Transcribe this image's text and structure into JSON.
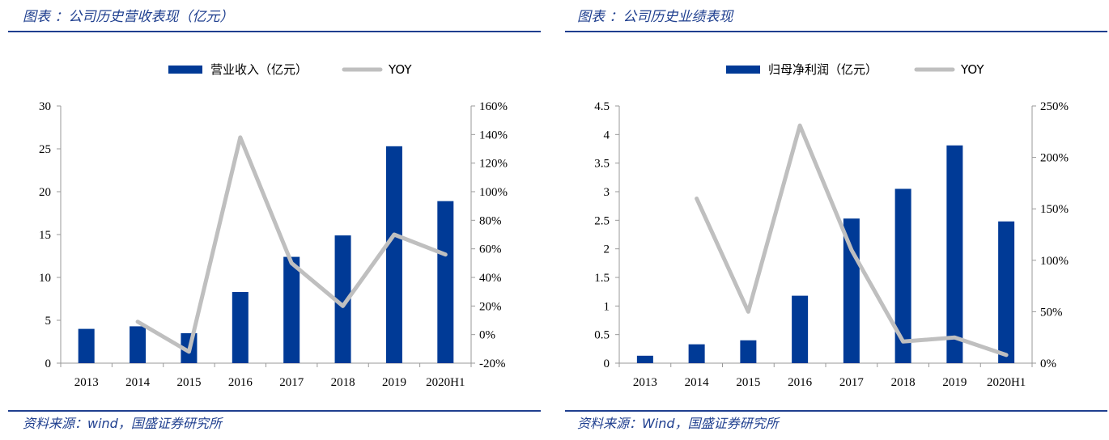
{
  "colors": {
    "bar": "#003a96",
    "line": "#bfbfbf",
    "axis": "#999999",
    "header_rule": "#1f3f8f"
  },
  "panels": [
    {
      "title": "图表 ：公司历史营收表现（亿元）",
      "source": "资料来源：wind，国盛证券研究所"
    },
    {
      "title": "图表 ：公司历史业绩表现",
      "source": "资料来源：Wind，国盛证券研究所"
    }
  ],
  "chart_data": [
    {
      "type": "bar",
      "categories": [
        "2013",
        "2014",
        "2015",
        "2016",
        "2017",
        "2018",
        "2019",
        "2020H1"
      ],
      "series": [
        {
          "name": "营业收入（亿元）",
          "type": "bar",
          "axis": "left",
          "values": [
            4.0,
            4.3,
            3.5,
            8.3,
            12.4,
            14.9,
            25.3,
            18.9
          ]
        },
        {
          "name": "YOY",
          "type": "line",
          "axis": "right",
          "values": [
            null,
            9,
            -12,
            138,
            50,
            20,
            70,
            56
          ]
        }
      ],
      "y_left": {
        "min": 0,
        "max": 30,
        "ticks": [
          0,
          5,
          10,
          15,
          20,
          25,
          30
        ],
        "tick_labels": [
          "0",
          "5",
          "10",
          "15",
          "20",
          "25",
          "30"
        ]
      },
      "y_right": {
        "min": -20,
        "max": 160,
        "ticks": [
          -20,
          0,
          20,
          40,
          60,
          80,
          100,
          120,
          140,
          160
        ],
        "tick_labels": [
          "-20%",
          "0%",
          "20%",
          "40%",
          "60%",
          "80%",
          "100%",
          "120%",
          "140%",
          "160%"
        ]
      },
      "legend_position": "top-center",
      "grid": false
    },
    {
      "type": "bar",
      "categories": [
        "2013",
        "2014",
        "2015",
        "2016",
        "2017",
        "2018",
        "2019",
        "2020H1"
      ],
      "series": [
        {
          "name": "归母净利润（亿元）",
          "type": "bar",
          "axis": "left",
          "values": [
            0.13,
            0.33,
            0.4,
            1.18,
            2.53,
            3.05,
            3.81,
            2.48
          ]
        },
        {
          "name": "YOY",
          "type": "line",
          "axis": "right",
          "values": [
            null,
            160,
            50,
            231,
            110,
            21,
            25,
            8
          ]
        }
      ],
      "y_left": {
        "min": 0,
        "max": 4.5,
        "ticks": [
          0,
          0.5,
          1,
          1.5,
          2,
          2.5,
          3,
          3.5,
          4,
          4.5
        ],
        "tick_labels": [
          "0",
          "0.5",
          "1",
          "1.5",
          "2",
          "2.5",
          "3",
          "3.5",
          "4",
          "4.5"
        ]
      },
      "y_right": {
        "min": 0,
        "max": 250,
        "ticks": [
          0,
          50,
          100,
          150,
          200,
          250
        ],
        "tick_labels": [
          "0%",
          "50%",
          "100%",
          "150%",
          "200%",
          "250%"
        ]
      },
      "legend_position": "top-center",
      "grid": false
    }
  ]
}
